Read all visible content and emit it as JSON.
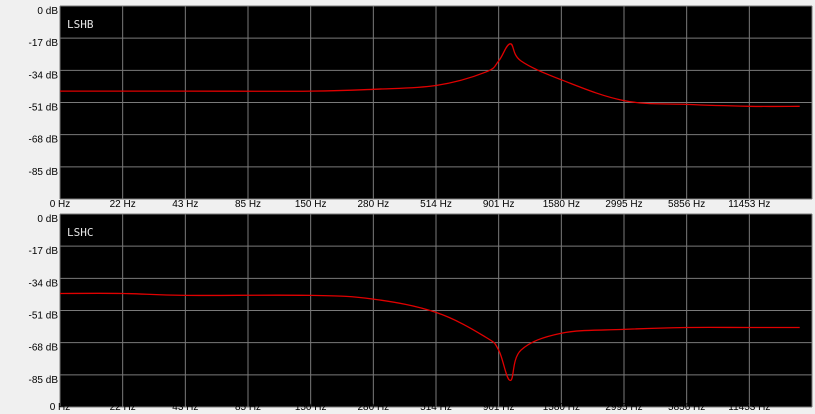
{
  "colors": {
    "background": "#000000",
    "grid": "#7a7a7a",
    "curve": "#e00000",
    "window": "#f0f0f0"
  },
  "chart_data": [
    {
      "type": "line",
      "title": "LSHB",
      "xlabel": "",
      "ylabel": "",
      "y_ticks": [
        "0 dB",
        "-17 dB",
        "-34 dB",
        "-51 dB",
        "-68 dB",
        "-85 dB"
      ],
      "x_ticks": [
        "0 Hz",
        "22 Hz",
        "43 Hz",
        "85 Hz",
        "150 Hz",
        "280 Hz",
        "514 Hz",
        "901 Hz",
        "1580 Hz",
        "2995 Hz",
        "5856 Hz",
        "11453 Hz"
      ],
      "ylim": [
        -102,
        0
      ],
      "grid": true,
      "series": [
        {
          "x": [
            "0 Hz",
            "43 Hz",
            "150 Hz",
            "280 Hz",
            "514 Hz",
            "800 Hz",
            "901 Hz",
            "1000 Hz",
            "1100 Hz",
            "1580 Hz",
            "2995 Hz",
            "5856 Hz",
            "11453 Hz",
            "20000 Hz"
          ],
          "values": [
            -45,
            -45,
            -45,
            -44,
            -42,
            -35,
            -29,
            -20,
            -29,
            -39,
            -50,
            -52,
            -53,
            -53
          ]
        }
      ]
    },
    {
      "type": "line",
      "title": "LSHC",
      "xlabel": "",
      "ylabel": "",
      "y_ticks": [
        "0 dB",
        "-17 dB",
        "-34 dB",
        "-51 dB",
        "-68 dB",
        "-85 dB"
      ],
      "x_ticks": [
        "0 Hz",
        "22 Hz",
        "43 Hz",
        "85 Hz",
        "150 Hz",
        "280 Hz",
        "514 Hz",
        "901 Hz",
        "1580 Hz",
        "2995 Hz",
        "5856 Hz",
        "11453 Hz"
      ],
      "ylim": [
        -102,
        0
      ],
      "grid": true,
      "series": [
        {
          "x": [
            "0 Hz",
            "22 Hz",
            "43 Hz",
            "150 Hz",
            "280 Hz",
            "514 Hz",
            "800 Hz",
            "901 Hz",
            "1000 Hz",
            "1100 Hz",
            "1580 Hz",
            "2995 Hz",
            "5856 Hz",
            "11453 Hz",
            "20000 Hz"
          ],
          "values": [
            -42,
            -42,
            -43,
            -43,
            -45,
            -52,
            -65,
            -72,
            -88,
            -72,
            -63,
            -61,
            -60,
            -60,
            -60
          ]
        }
      ]
    }
  ]
}
